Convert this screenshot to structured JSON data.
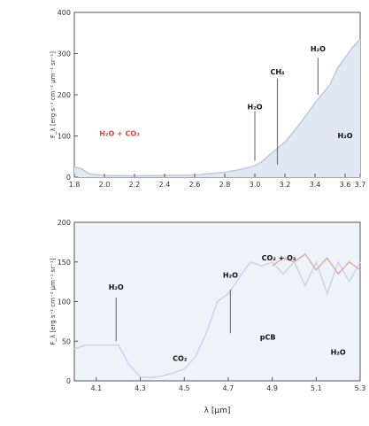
{
  "chart_data": [
    {
      "type": "area",
      "xlim": [
        1.8,
        3.7
      ],
      "ylim": [
        0,
        400
      ],
      "x_ticks": [
        "1.8",
        "2.0",
        "2.2",
        "2.4",
        "2.6",
        "2.8",
        "3.0",
        "3.2",
        "3.4",
        "3.6",
        "3.7"
      ],
      "x_tick_values": [
        1.8,
        2.0,
        2.2,
        2.4,
        2.6,
        2.8,
        3.0,
        3.2,
        3.4,
        3.6,
        3.7
      ],
      "y_ticks": [
        "0",
        "100",
        "200",
        "300",
        "400"
      ],
      "y_tick_values": [
        0,
        100,
        200,
        300,
        400
      ],
      "ylabel": "F_λ [erg s⁻¹ cm⁻² μm⁻¹ sr⁻¹]",
      "grid": false,
      "series": [
        {
          "x": [
            1.8,
            1.85,
            1.9,
            2.0,
            2.2,
            2.4,
            2.6,
            2.8,
            2.9,
            3.0,
            3.05,
            3.1,
            3.2,
            3.3,
            3.4,
            3.5,
            3.55,
            3.6,
            3.65,
            3.7
          ],
          "y": [
            25,
            20,
            8,
            4,
            3,
            4,
            5,
            12,
            18,
            28,
            38,
            55,
            85,
            130,
            180,
            225,
            265,
            290,
            315,
            335
          ]
        }
      ],
      "annotations": [
        {
          "text": "H₂O + CO₂",
          "x": 2.1,
          "y": 100,
          "color": "#d24a4a"
        },
        {
          "text": "H₂O",
          "x": 3.0,
          "y": 165,
          "line_from": 160,
          "line_to": 40
        },
        {
          "text": "CH₄",
          "x": 3.15,
          "y": 250,
          "line_from": 240,
          "line_to": 30
        },
        {
          "text": "H₂O",
          "x": 3.42,
          "y": 305,
          "line_from": 290,
          "line_to": 200
        },
        {
          "text": "H₂O",
          "x": 3.6,
          "y": 95
        }
      ]
    },
    {
      "type": "line",
      "xlim": [
        4.0,
        5.3
      ],
      "ylim": [
        0,
        200
      ],
      "x_ticks": [
        "4.1",
        "4.3",
        "4.5",
        "4.7",
        "4.9",
        "5.1",
        "5.3"
      ],
      "x_tick_values": [
        4.1,
        4.3,
        4.5,
        4.7,
        4.9,
        5.1,
        5.3
      ],
      "y_ticks": [
        "0",
        "50",
        "100",
        "150",
        "200"
      ],
      "y_tick_values": [
        0,
        50,
        100,
        150,
        200
      ],
      "xlabel": "λ [μm]",
      "ylabel": "F_λ [erg s⁻¹ cm⁻² μm⁻¹ sr⁻¹]",
      "grid": false,
      "series": [
        {
          "x": [
            4.0,
            4.05,
            4.1,
            4.15,
            4.2,
            4.25,
            4.3,
            4.35,
            4.4,
            4.45,
            4.5,
            4.55,
            4.6,
            4.65,
            4.7,
            4.75,
            4.8,
            4.85,
            4.9,
            4.95,
            5.0,
            5.05,
            5.1,
            5.15,
            5.2,
            5.25,
            5.3
          ],
          "y": [
            40,
            45,
            45,
            45,
            45,
            20,
            5,
            4,
            6,
            10,
            15,
            30,
            60,
            100,
            110,
            130,
            150,
            145,
            150,
            135,
            150,
            120,
            150,
            110,
            150,
            125,
            150
          ],
          "color": "#c8d4e6"
        },
        {
          "x": [
            4.9,
            4.95,
            5.0,
            5.05,
            5.1,
            5.15,
            5.2,
            5.25,
            5.3
          ],
          "y": [
            145,
            155,
            150,
            160,
            140,
            155,
            135,
            150,
            140
          ],
          "color": "#e2a8a8"
        }
      ],
      "annotations": [
        {
          "text": "H₂O",
          "x": 4.19,
          "y": 115,
          "line_from": 105,
          "line_to": 50
        },
        {
          "text": "CO₂",
          "x": 4.48,
          "y": 25
        },
        {
          "text": "H₂O",
          "x": 4.71,
          "y": 130,
          "line_from": 115,
          "line_to": 60
        },
        {
          "text": "CO₂ + O₃",
          "x": 4.93,
          "y": 152
        },
        {
          "text": "pCB",
          "x": 4.88,
          "y": 52
        },
        {
          "text": "H₂O",
          "x": 5.2,
          "y": 33
        }
      ]
    }
  ]
}
